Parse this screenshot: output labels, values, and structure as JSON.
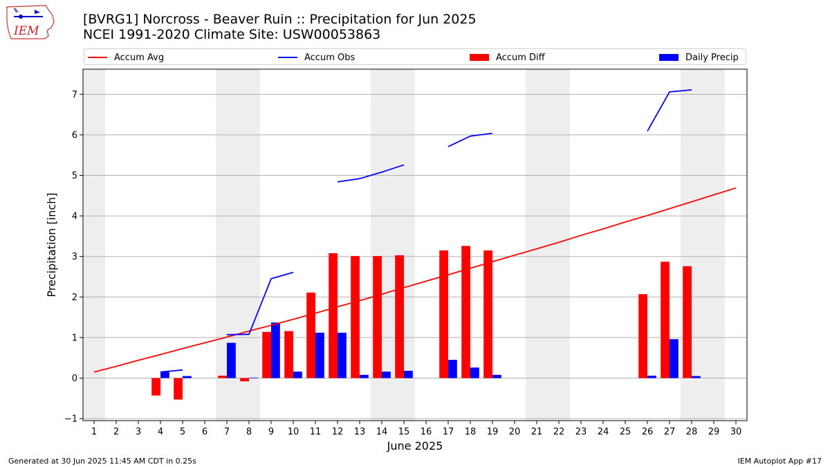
{
  "title": {
    "line1": "[BVRG1] Norcross - Beaver Ruin :: Precipitation for Jun 2025",
    "line2": "NCEI 1991-2020 Climate Site: USW00053863"
  },
  "logo_text": "IEM",
  "footer": {
    "left": "Generated at 30 Jun 2025 11:45 AM CDT in 0.25s",
    "right": "IEM Autoplot App #17"
  },
  "colors": {
    "accum_avg": "#ff0000",
    "accum_obs": "#0000ff",
    "accum_diff": "#ff0000",
    "daily_precip": "#0000ff",
    "weekend_shade": "#eeeeee",
    "grid": "#b0b0b0"
  },
  "chart_data": {
    "type": "bar",
    "xlabel": "June 2025",
    "ylabel": "Precipitation [inch]",
    "x": [
      1,
      2,
      3,
      4,
      5,
      6,
      7,
      8,
      9,
      10,
      11,
      12,
      13,
      14,
      15,
      16,
      17,
      18,
      19,
      20,
      21,
      22,
      23,
      24,
      25,
      26,
      27,
      28,
      29,
      30
    ],
    "xlim": [
      0.5,
      30.5
    ],
    "ylim": [
      -1.05,
      7.62
    ],
    "yticks": [
      -1,
      0,
      1,
      2,
      3,
      4,
      5,
      6,
      7
    ],
    "grid": "horizontal",
    "legend_position": "top",
    "shaded_weekends": [
      [
        1,
        1
      ],
      [
        7,
        8
      ],
      [
        14,
        15
      ],
      [
        21,
        22
      ],
      [
        28,
        29
      ]
    ],
    "series": [
      {
        "name": "Accum Avg",
        "kind": "line",
        "values": [
          0.15,
          0.29,
          0.44,
          0.58,
          0.73,
          0.87,
          1.01,
          1.16,
          1.3,
          1.45,
          1.6,
          1.76,
          1.91,
          2.07,
          2.23,
          2.39,
          2.55,
          2.71,
          2.87,
          3.03,
          3.19,
          3.35,
          3.52,
          3.68,
          3.85,
          4.01,
          4.18,
          4.35,
          4.52,
          4.69
        ]
      },
      {
        "name": "Accum Obs",
        "kind": "line",
        "values": [
          null,
          null,
          null,
          0.15,
          0.2,
          null,
          1.07,
          1.08,
          2.45,
          2.61,
          null,
          4.84,
          4.92,
          5.08,
          5.26,
          null,
          5.71,
          5.97,
          6.04,
          null,
          null,
          null,
          null,
          null,
          null,
          6.09,
          7.06,
          7.11,
          null,
          null
        ]
      },
      {
        "name": "Accum Diff",
        "kind": "bar",
        "values": [
          null,
          null,
          null,
          -0.43,
          -0.53,
          null,
          0.06,
          -0.08,
          1.14,
          1.16,
          2.11,
          3.08,
          3.01,
          3.01,
          3.03,
          null,
          3.15,
          3.26,
          3.15,
          null,
          null,
          null,
          null,
          null,
          null,
          2.07,
          2.87,
          2.76,
          null,
          null
        ]
      },
      {
        "name": "Daily Precip",
        "kind": "bar",
        "values": [
          null,
          null,
          null,
          0.15,
          0.05,
          null,
          0.87,
          0.01,
          1.37,
          0.16,
          1.12,
          1.12,
          0.08,
          0.16,
          0.18,
          null,
          0.45,
          0.26,
          0.08,
          null,
          null,
          null,
          null,
          null,
          null,
          0.06,
          0.96,
          0.05,
          null,
          null
        ]
      }
    ]
  }
}
